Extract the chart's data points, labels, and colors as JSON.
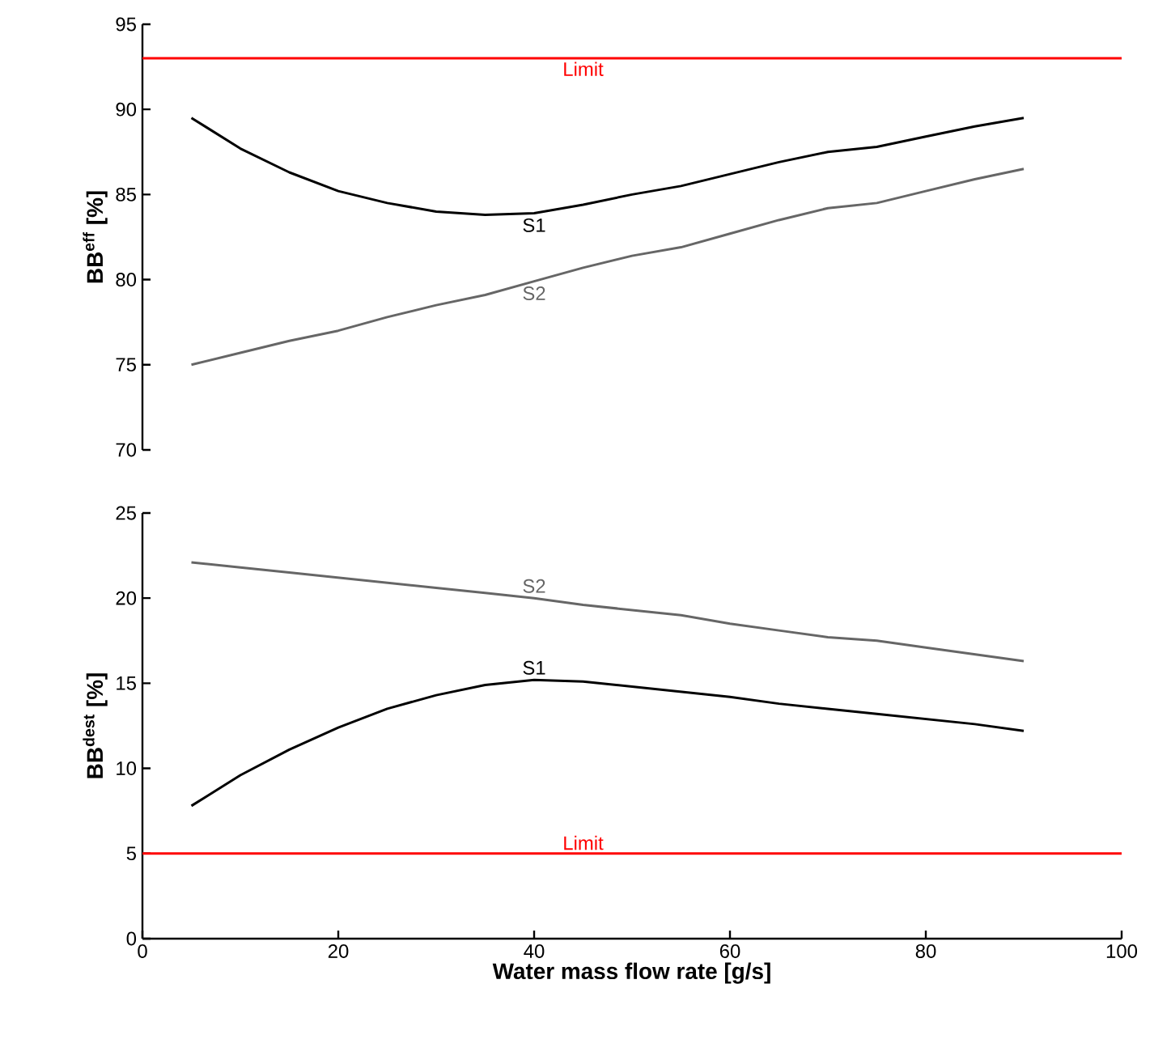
{
  "chart_data": [
    {
      "type": "line",
      "ylabel": "BB$^{eff}$ [%]",
      "xlim": [
        0,
        100
      ],
      "ylim": [
        70,
        95
      ],
      "yticks": [
        70,
        75,
        80,
        85,
        90,
        95
      ],
      "tick_labels": "y",
      "x": [
        5,
        10,
        15,
        20,
        25,
        30,
        35,
        40,
        45,
        50,
        55,
        60,
        65,
        70,
        75,
        80,
        85,
        90
      ],
      "series": [
        {
          "name": "S1",
          "color": "#000000",
          "values": [
            89.5,
            87.7,
            86.3,
            85.2,
            84.5,
            84.0,
            83.8,
            83.9,
            84.4,
            85.0,
            85.5,
            86.2,
            86.9,
            87.5,
            87.8,
            88.4,
            89.0,
            89.5
          ]
        },
        {
          "name": "S2",
          "color": "#666666",
          "values": [
            75.0,
            75.7,
            76.4,
            77.0,
            77.8,
            78.5,
            79.1,
            79.9,
            80.7,
            81.4,
            81.9,
            82.7,
            83.5,
            84.2,
            84.5,
            85.2,
            85.9,
            86.5
          ]
        }
      ],
      "ref_lines": [
        {
          "axis": "y",
          "value": 93,
          "label": "Limit",
          "color": "#ff0000"
        }
      ]
    },
    {
      "type": "line",
      "ylabel": "BB$^{dest}$ [%]",
      "xlabel": "Water mass flow rate [g/s]",
      "xlim": [
        0,
        100
      ],
      "ylim": [
        0,
        25
      ],
      "xticks": [
        0,
        20,
        40,
        60,
        80,
        100
      ],
      "yticks": [
        0,
        5,
        10,
        15,
        20,
        25
      ],
      "x": [
        5,
        10,
        15,
        20,
        25,
        30,
        35,
        40,
        45,
        50,
        55,
        60,
        65,
        70,
        75,
        80,
        85,
        90
      ],
      "series": [
        {
          "name": "S2",
          "color": "#666666",
          "values": [
            22.1,
            21.8,
            21.5,
            21.2,
            20.9,
            20.6,
            20.3,
            20.0,
            19.6,
            19.3,
            19.0,
            18.5,
            18.1,
            17.7,
            17.5,
            17.1,
            16.7,
            16.3
          ]
        },
        {
          "name": "S1",
          "color": "#000000",
          "values": [
            7.8,
            9.6,
            11.1,
            12.4,
            13.5,
            14.3,
            14.9,
            15.2,
            15.1,
            14.8,
            14.5,
            14.2,
            13.8,
            13.5,
            13.2,
            12.9,
            12.6,
            12.2
          ]
        }
      ],
      "ref_lines": [
        {
          "axis": "y",
          "value": 5,
          "label": "Limit",
          "color": "#ff0000"
        }
      ]
    }
  ]
}
